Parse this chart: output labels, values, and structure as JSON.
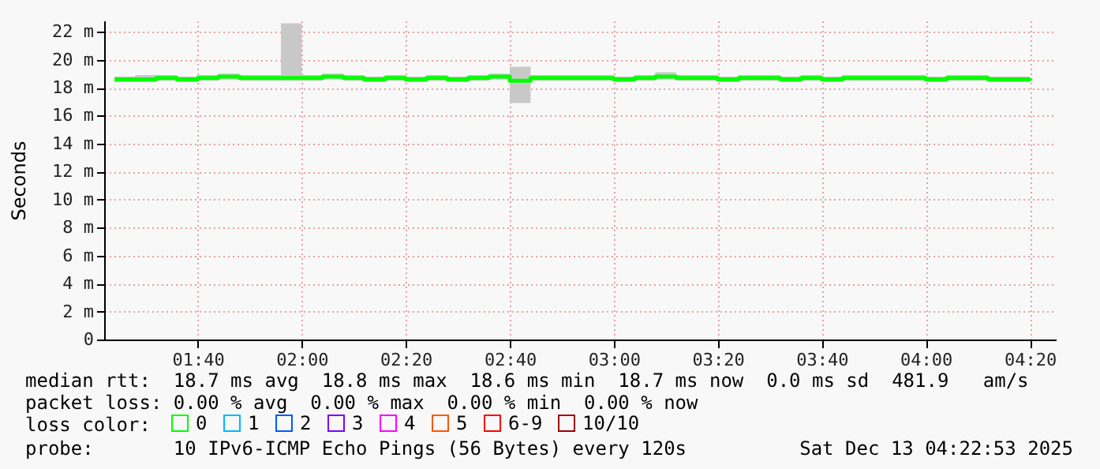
{
  "chart_data": {
    "type": "step",
    "ylabel": "Seconds",
    "legend_title": "loss color:",
    "legend": "bottom",
    "grid": true,
    "xlim": [
      "2025-12-13T01:22",
      "2025-12-13T04:25"
    ],
    "xticks": [
      {
        "value": "2025-12-13T01:40",
        "label": "01:40"
      },
      {
        "value": "2025-12-13T02:00",
        "label": "02:00"
      },
      {
        "value": "2025-12-13T02:20",
        "label": "02:20"
      },
      {
        "value": "2025-12-13T02:40",
        "label": "02:40"
      },
      {
        "value": "2025-12-13T03:00",
        "label": "03:00"
      },
      {
        "value": "2025-12-13T03:20",
        "label": "03:20"
      },
      {
        "value": "2025-12-13T03:40",
        "label": "03:40"
      },
      {
        "value": "2025-12-13T04:00",
        "label": "04:00"
      },
      {
        "value": "2025-12-13T04:20",
        "label": "04:20"
      }
    ],
    "ylim": [
      0,
      22.8
    ],
    "yticks": [
      0,
      {
        "value": 2,
        "label": "2 m"
      },
      {
        "value": 4,
        "label": "4 m"
      },
      {
        "value": 6,
        "label": "6 m"
      },
      {
        "value": 8,
        "label": "8 m"
      },
      {
        "value": 10,
        "label": "10 m"
      },
      {
        "value": 12,
        "label": "12 m"
      },
      {
        "value": 14,
        "label": "14 m"
      },
      {
        "value": 16,
        "label": "16 m"
      },
      {
        "value": 18,
        "label": "18 m"
      },
      {
        "value": 20,
        "label": "20 m"
      },
      {
        "value": 22,
        "label": "22 m"
      }
    ],
    "series": [
      {
        "name": "0",
        "color": "#00ff00",
        "x": [
          "2025-12-13T01:24",
          "2025-12-13T01:28",
          "2025-12-13T01:32",
          "2025-12-13T01:36",
          "2025-12-13T01:40",
          "2025-12-13T01:44",
          "2025-12-13T01:48",
          "2025-12-13T01:52",
          "2025-12-13T01:56",
          "2025-12-13T02:00",
          "2025-12-13T02:04",
          "2025-12-13T02:08",
          "2025-12-13T02:12",
          "2025-12-13T02:16",
          "2025-12-13T02:20",
          "2025-12-13T02:24",
          "2025-12-13T02:28",
          "2025-12-13T02:32",
          "2025-12-13T02:36",
          "2025-12-13T02:40",
          "2025-12-13T02:44",
          "2025-12-13T02:48",
          "2025-12-13T02:52",
          "2025-12-13T02:56",
          "2025-12-13T03:00",
          "2025-12-13T03:04",
          "2025-12-13T03:08",
          "2025-12-13T03:12",
          "2025-12-13T03:16",
          "2025-12-13T03:20",
          "2025-12-13T03:24",
          "2025-12-13T03:28",
          "2025-12-13T03:32",
          "2025-12-13T03:36",
          "2025-12-13T03:40",
          "2025-12-13T03:44",
          "2025-12-13T03:48",
          "2025-12-13T03:52",
          "2025-12-13T03:56",
          "2025-12-13T04:00",
          "2025-12-13T04:04",
          "2025-12-13T04:08",
          "2025-12-13T04:12",
          "2025-12-13T04:16",
          "2025-12-13T04:20"
        ],
        "values": [
          18.6,
          18.6,
          18.7,
          18.6,
          18.7,
          18.8,
          18.7,
          18.7,
          18.7,
          18.7,
          18.8,
          18.7,
          18.6,
          18.7,
          18.6,
          18.7,
          18.6,
          18.7,
          18.8,
          18.5,
          18.7,
          18.7,
          18.7,
          18.7,
          18.6,
          18.7,
          18.8,
          18.7,
          18.7,
          18.6,
          18.7,
          18.7,
          18.6,
          18.7,
          18.6,
          18.7,
          18.7,
          18.7,
          18.7,
          18.6,
          18.7,
          18.7,
          18.6,
          18.6,
          18.7
        ],
        "lower": [
          18.4,
          18.4,
          18.5,
          18.4,
          18.5,
          18.6,
          18.5,
          18.5,
          18.5,
          18.5,
          18.6,
          18.5,
          18.4,
          18.5,
          18.4,
          18.5,
          18.4,
          18.5,
          18.6,
          16.9,
          18.5,
          18.5,
          18.5,
          18.5,
          18.4,
          18.5,
          18.6,
          18.5,
          18.5,
          18.4,
          18.5,
          18.5,
          18.4,
          18.5,
          18.4,
          18.5,
          18.5,
          18.5,
          18.5,
          18.4,
          18.5,
          18.5,
          18.4,
          18.4,
          18.5
        ],
        "upper": [
          18.8,
          18.9,
          18.9,
          18.8,
          18.9,
          19.0,
          18.9,
          18.9,
          22.6,
          18.9,
          19.0,
          18.9,
          18.8,
          18.9,
          18.8,
          18.9,
          18.8,
          18.9,
          19.0,
          19.5,
          18.9,
          18.9,
          18.9,
          18.9,
          18.8,
          18.9,
          19.1,
          18.9,
          18.9,
          18.8,
          18.9,
          18.9,
          18.8,
          18.9,
          18.8,
          18.9,
          18.9,
          18.9,
          18.9,
          18.8,
          18.9,
          18.9,
          18.8,
          18.8,
          18.9
        ]
      },
      {
        "name": "1",
        "color": "#00b8ff"
      },
      {
        "name": "2",
        "color": "#0059ff"
      },
      {
        "name": "3",
        "color": "#7e00ff"
      },
      {
        "name": "4",
        "color": "#ff00ff"
      },
      {
        "name": "5",
        "color": "#ff5500"
      },
      {
        "name": "6-9",
        "color": "#ff0000"
      },
      {
        "name": "10/10",
        "color": "#a10000"
      }
    ],
    "annotations": [
      "median rtt:  18.7 ms avg  18.8 ms max  18.6 ms min  18.7 ms now  0.0 ms sd  481.9   am/s",
      "packet loss: 0.00 % avg  0.00 % max  0.00 % min  0.00 % now",
      "probe:       10 IPv6-ICMP Echo Pings (56 Bytes) every 120s",
      "Sat Dec 13 04:22:53 2025"
    ]
  }
}
